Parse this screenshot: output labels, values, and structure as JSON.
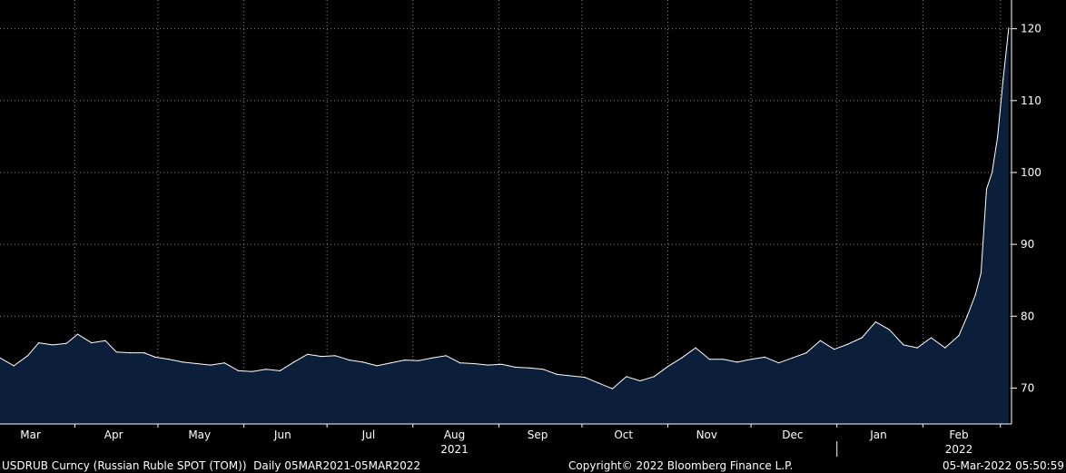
{
  "chart_data": {
    "type": "area",
    "title": "",
    "xlabel": "",
    "ylabel": "",
    "xlim": [
      "2021-03-05",
      "2022-03-05"
    ],
    "ylim": [
      65,
      124
    ],
    "y_ticks": [
      70,
      80,
      90,
      100,
      110,
      120
    ],
    "y_axis_position": "right",
    "grid": true,
    "month_labels": [
      {
        "label": "Mar",
        "date": "2021-03-16"
      },
      {
        "label": "Apr",
        "date": "2021-04-15"
      },
      {
        "label": "May",
        "date": "2021-05-16"
      },
      {
        "label": "Jun",
        "date": "2021-06-15"
      },
      {
        "label": "Jul",
        "date": "2021-07-16"
      },
      {
        "label": "Aug",
        "date": "2021-08-16"
      },
      {
        "label": "Sep",
        "date": "2021-09-15"
      },
      {
        "label": "Oct",
        "date": "2021-10-16"
      },
      {
        "label": "Nov",
        "date": "2021-11-15"
      },
      {
        "label": "Dec",
        "date": "2021-12-16"
      },
      {
        "label": "Jan",
        "date": "2022-01-16"
      },
      {
        "label": "Feb",
        "date": "2022-02-14"
      }
    ],
    "month_gridlines": [
      "2021-04-01",
      "2021-05-01",
      "2021-06-01",
      "2021-07-01",
      "2021-08-01",
      "2021-09-01",
      "2021-10-01",
      "2021-11-01",
      "2021-12-01",
      "2022-01-01",
      "2022-02-01",
      "2022-03-01"
    ],
    "year_labels": [
      {
        "label": "2021",
        "date": "2021-08-16"
      },
      {
        "label": "2022",
        "date": "2022-02-14"
      }
    ],
    "year_separator": "2022-01-01",
    "series": [
      {
        "x": [
          "2021-03-05",
          "2021-03-10",
          "2021-03-15",
          "2021-03-19",
          "2021-03-24",
          "2021-03-29",
          "2021-04-02",
          "2021-04-07",
          "2021-04-12",
          "2021-04-16",
          "2021-04-21",
          "2021-04-26",
          "2021-04-30",
          "2021-05-05",
          "2021-05-10",
          "2021-05-15",
          "2021-05-20",
          "2021-05-25",
          "2021-05-30",
          "2021-06-04",
          "2021-06-09",
          "2021-06-14",
          "2021-06-19",
          "2021-06-24",
          "2021-06-29",
          "2021-07-04",
          "2021-07-09",
          "2021-07-14",
          "2021-07-19",
          "2021-07-24",
          "2021-07-29",
          "2021-08-03",
          "2021-08-08",
          "2021-08-13",
          "2021-08-18",
          "2021-08-23",
          "2021-08-28",
          "2021-09-02",
          "2021-09-07",
          "2021-09-12",
          "2021-09-17",
          "2021-09-22",
          "2021-09-27",
          "2021-10-02",
          "2021-10-07",
          "2021-10-12",
          "2021-10-17",
          "2021-10-22",
          "2021-10-27",
          "2021-11-01",
          "2021-11-06",
          "2021-11-11",
          "2021-11-16",
          "2021-11-21",
          "2021-11-26",
          "2021-12-01",
          "2021-12-06",
          "2021-12-11",
          "2021-12-16",
          "2021-12-21",
          "2021-12-26",
          "2021-12-31",
          "2022-01-05",
          "2022-01-10",
          "2022-01-15",
          "2022-01-20",
          "2022-01-25",
          "2022-01-30",
          "2022-02-04",
          "2022-02-09",
          "2022-02-14",
          "2022-02-17",
          "2022-02-20",
          "2022-02-22",
          "2022-02-24",
          "2022-02-26",
          "2022-02-28",
          "2022-03-02",
          "2022-03-04"
        ],
        "y": [
          74.2,
          73.1,
          74.5,
          76.3,
          76.0,
          76.2,
          77.5,
          76.3,
          76.6,
          75.0,
          74.9,
          74.9,
          74.3,
          74.0,
          73.6,
          73.4,
          73.2,
          73.5,
          72.4,
          72.3,
          72.6,
          72.4,
          73.6,
          74.7,
          74.4,
          74.5,
          73.9,
          73.6,
          73.1,
          73.5,
          73.9,
          73.8,
          74.2,
          74.5,
          73.5,
          73.4,
          73.2,
          73.3,
          72.9,
          72.8,
          72.6,
          71.9,
          71.7,
          71.5,
          70.7,
          69.9,
          71.6,
          71.0,
          71.6,
          73.0,
          74.2,
          75.6,
          74.0,
          74.0,
          73.6,
          74.0,
          74.3,
          73.5,
          74.2,
          74.9,
          76.6,
          75.4,
          76.1,
          77.0,
          79.2,
          78.1,
          76.0,
          75.6,
          77.0,
          75.6,
          77.3,
          80.0,
          83.0,
          86.0,
          97.7,
          100.0,
          105.0,
          113.0,
          120.1
        ]
      }
    ]
  },
  "footer": {
    "left": "USDRUB Curncy (Russian Ruble SPOT (TOM))  Daily 05MAR2021-05MAR2022",
    "middle": "Copyright© 2022 Bloomberg Finance L.P.",
    "right": "05-Mar-2022 05:50:59"
  },
  "colors": {
    "background": "#000000",
    "area_fill": "#0b1f3a",
    "line": "#ffffff",
    "grid": "#8a8a8a",
    "text": "#ffffff"
  }
}
